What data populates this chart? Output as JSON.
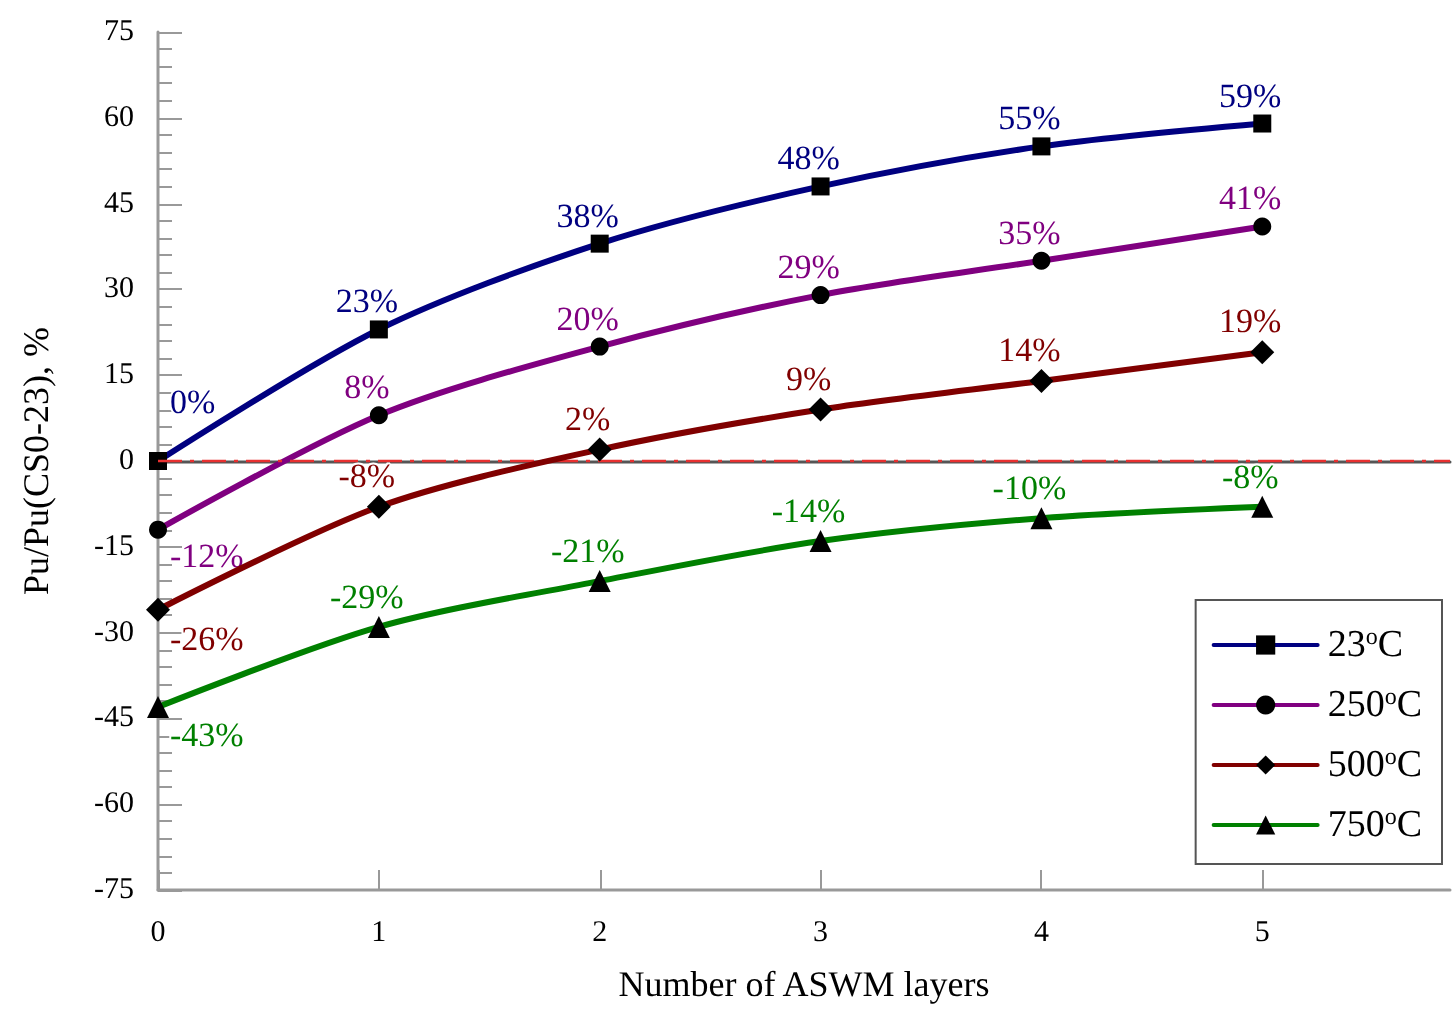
{
  "chart_data": {
    "type": "line",
    "xlabel": "Number of ASWM layers",
    "ylabel": "Pu/Pu(CS0-23), %",
    "x": [
      0,
      1,
      2,
      3,
      4,
      5
    ],
    "xlim": [
      0,
      5.85
    ],
    "xticks": [
      0,
      1,
      2,
      3,
      4,
      5
    ],
    "ylim": [
      -75,
      75
    ],
    "yticks": [
      -75,
      -60,
      -45,
      -30,
      -15,
      0,
      15,
      30,
      45,
      60,
      75
    ],
    "series": [
      {
        "name": "23$^{o}$C",
        "color": "#000080",
        "marker": "square",
        "values": [
          0,
          23,
          38,
          48,
          55,
          59
        ],
        "value_labels": [
          "0%",
          "23%",
          "38%",
          "48%",
          "55%",
          "59%"
        ]
      },
      {
        "name": "250$^{o}$C",
        "color": "#800080",
        "marker": "circle",
        "values": [
          -12,
          8,
          20,
          29,
          35,
          41
        ],
        "value_labels": [
          "-12%",
          "8%",
          "20%",
          "29%",
          "35%",
          "41%"
        ]
      },
      {
        "name": "500$^{o}$C",
        "color": "#800000",
        "marker": "diamond",
        "values": [
          -26,
          -8,
          2,
          9,
          14,
          19
        ],
        "value_labels": [
          "-26%",
          "-8%",
          "2%",
          "9%",
          "14%",
          "19%"
        ]
      },
      {
        "name": "750$^{o}$C",
        "color": "#008000",
        "marker": "triangle",
        "values": [
          -43,
          -29,
          -21,
          -14,
          -10,
          -8
        ],
        "value_labels": [
          "-43%",
          "-29%",
          "-21%",
          "-14%",
          "-10%",
          "-8%"
        ]
      }
    ],
    "ref_lines": [
      {
        "axis": "y",
        "value": 0,
        "color": "#e83030",
        "line_style": "dashdot"
      }
    ],
    "legend": "bottom right",
    "grid": false
  }
}
